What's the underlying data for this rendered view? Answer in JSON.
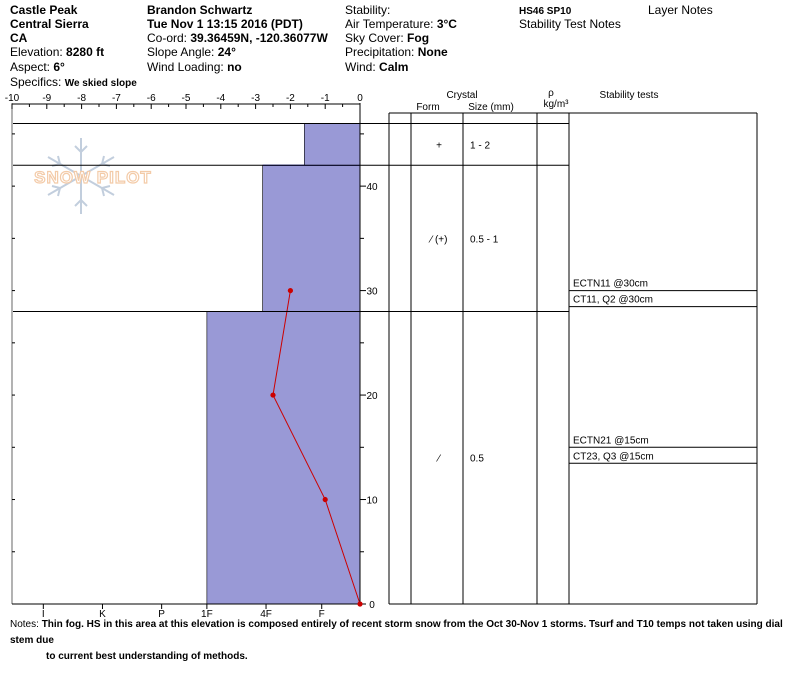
{
  "header": {
    "location": "Castle Peak",
    "range": "Central Sierra",
    "state": "CA",
    "elevation_label": "Elevation:",
    "elevation_value": "8280 ft",
    "aspect_label": "Aspect:",
    "aspect_value": "6°",
    "specifics_label": "Specifics:",
    "specifics_value": "We skied slope",
    "observer": "Brandon Schwartz",
    "datetime": "Tue Nov 1 13:15 2016 (PDT)",
    "coord_label": "Co-ord:",
    "coord_value": "39.36459N, -120.36077W",
    "slope_label": "Slope Angle:",
    "slope_value": "24°",
    "wind_loading_label": "Wind Loading:",
    "wind_loading_value": "no",
    "stability_label": "Stability:",
    "air_temp_label": "Air Temperature:",
    "air_temp_value": "3°C",
    "sky_label": "Sky Cover:",
    "sky_value": "Fog",
    "precip_label": "Precipitation:",
    "precip_value": "None",
    "wind_label": "Wind:",
    "wind_value": "Calm",
    "hs_sp": "HS46 SP10",
    "stability_notes": "Stability Test Notes",
    "layer_notes": "Layer Notes"
  },
  "watermark": "SNOW PILOT",
  "table_headers": {
    "crystal": "Crystal",
    "form": "Form",
    "size": "Size (mm)",
    "rho": "ρ",
    "density_unit": "kg/m³",
    "stability_tests": "Stability tests"
  },
  "notes": {
    "label": "Notes:",
    "text_line1": "Thin fog. HS in this area at this elevation is composed entirely of recent storm snow from the Oct 30-Nov 1 storms. Tsurf and T10 temps not taken using dial stem due",
    "text_line2": "to current best understanding of methods."
  },
  "colors": {
    "hardness_fill": "#9999d6",
    "hardness_edge": "#0000cc",
    "temp_line": "#cc0000"
  },
  "chart_data": {
    "type": "snow_profile",
    "temperature_axis": {
      "ticks": [
        -10,
        -9,
        -8,
        -7,
        -6,
        -5,
        -4,
        -3,
        -2,
        -1,
        0
      ],
      "range": [
        -10,
        0
      ]
    },
    "height_axis": {
      "ticks": [
        0,
        10,
        20,
        30,
        40
      ],
      "range": [
        0,
        47
      ]
    },
    "hardness_axis": {
      "ticks": [
        "I",
        "K",
        "P",
        "1F",
        "4F",
        "F"
      ],
      "tick_positions_deg": [
        -9.1,
        -7.4,
        -5.7,
        -4.4,
        -2.7,
        -1.1
      ]
    },
    "hardness_layers": [
      {
        "bottom": 0,
        "top": 28,
        "hardness_deg": -4.4
      },
      {
        "bottom": 28,
        "top": 42,
        "hardness_deg": -2.8
      },
      {
        "bottom": 42,
        "top": 46,
        "hardness_deg": -1.6
      }
    ],
    "temperature_profile": [
      {
        "height": 30,
        "temp": -2
      },
      {
        "height": 20,
        "temp": -2.5
      },
      {
        "height": 10,
        "temp": -1
      },
      {
        "height": 0,
        "temp": 0
      }
    ],
    "layers_table": [
      {
        "bottom": 42,
        "top": 46,
        "form": "+",
        "size": "1 - 2"
      },
      {
        "bottom": 28,
        "top": 42,
        "form": "⁄ (+)",
        "size": "0.5 - 1"
      },
      {
        "bottom": 0,
        "top": 28,
        "form": "⁄",
        "size": "0.5"
      }
    ],
    "stability_tests": [
      {
        "text": "ECTN11 @30cm",
        "height": 30
      },
      {
        "text": "CT11, Q2 @30cm",
        "height": 30
      },
      {
        "text": "ECTN21 @15cm",
        "height": 15
      },
      {
        "text": "CT23, Q3 @15cm",
        "height": 15
      }
    ]
  }
}
